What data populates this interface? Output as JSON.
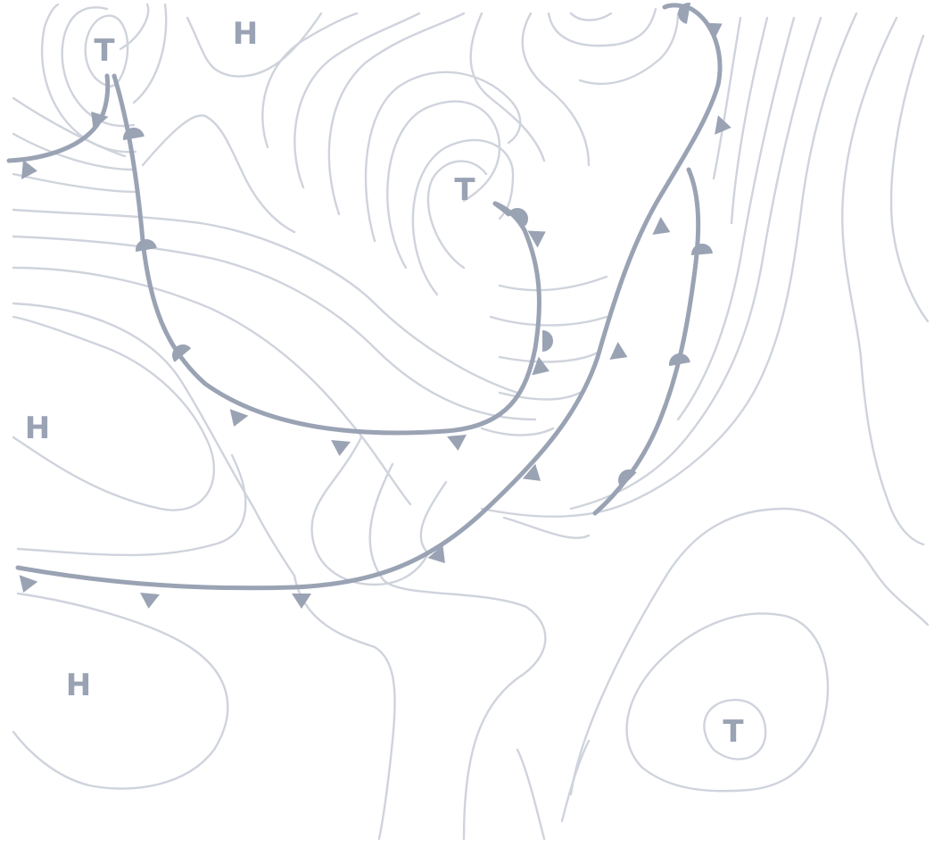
{
  "map": {
    "colors": {
      "isobar": "#cfd3dc",
      "front": "#9aa3b4",
      "label": "#9aa3b4",
      "background": "#ffffff"
    },
    "pressure_labels": [
      {
        "id": "low-northwest",
        "text": "T"
      },
      {
        "id": "high-north",
        "text": "H"
      },
      {
        "id": "low-central",
        "text": "T"
      },
      {
        "id": "high-west",
        "text": "H"
      },
      {
        "id": "high-southwest",
        "text": "H"
      },
      {
        "id": "low-southeast",
        "text": "T"
      }
    ],
    "fronts": [
      {
        "id": "cold-front-northwest",
        "type": "cold"
      },
      {
        "id": "occluded-front-west",
        "type": "occluded"
      },
      {
        "id": "occluded-front-central",
        "type": "occluded"
      },
      {
        "id": "cold-front-main",
        "type": "cold"
      },
      {
        "id": "warm-front-east",
        "type": "warm"
      }
    ]
  }
}
